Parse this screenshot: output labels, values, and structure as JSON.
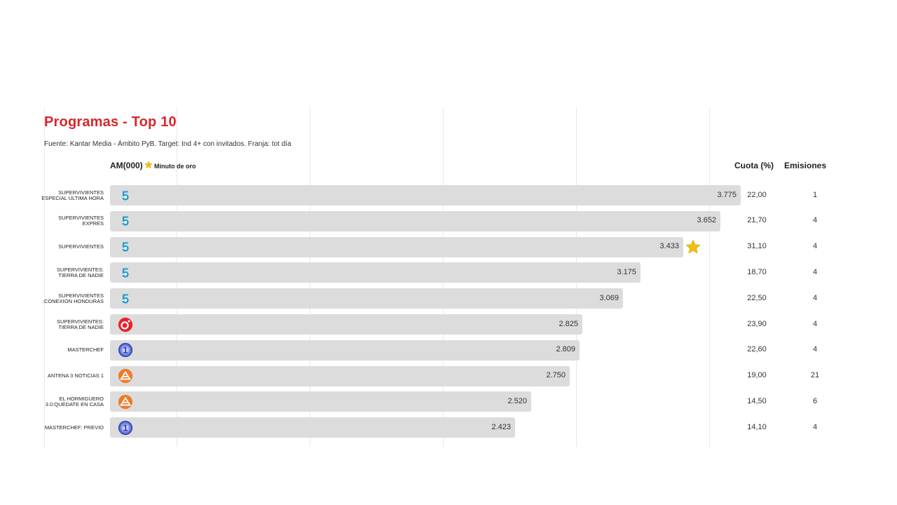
{
  "title": "Programas - Top 10",
  "subtitle": "Fuente: Kantar Media - Ámbito PyB. Target: Ind 4+ con invitados. Franja: tot día",
  "headers": {
    "am": "AM(000)",
    "legend": "Minuto de oro",
    "cuota": "Cuota (%)",
    "emisiones": "Emisiones"
  },
  "colors": {
    "title": "#d9262c",
    "bar": "#dcdcdc",
    "star": "#f2c10f",
    "telecinco": "#1a9ad6",
    "cuatro": "#e8212b",
    "la1": "#2438a8",
    "antena3": "#f07a2a"
  },
  "chart_data": {
    "type": "bar",
    "orientation": "horizontal",
    "title": "Programas - Top 10",
    "xlabel": "AM(000)",
    "xlim": [
      0,
      4000
    ],
    "grid": true,
    "categories": [
      "SUPERVIVIENTES ESPECIAL ULTIMA HORA",
      "SUPERVIVIENTES EXPRES",
      "SUPERVIVIENTES",
      "SUPERVIVIENTES: TIERRA DE NADIE",
      "SUPERVIVIENTES :CONEXION HONDURAS",
      "SUPERVIVIENTES: TIERRA DE NADIE",
      "MASTERCHEF",
      "ANTENA 3 NOTICIAS 1",
      "EL HORMIGUERO 3.0:QUEDATE EN CASA",
      "MASTERCHEF: PREVIO"
    ],
    "values": [
      3775,
      3652,
      3433,
      3175,
      3069,
      2825,
      2809,
      2750,
      2520,
      2423
    ],
    "value_labels": [
      "3.775",
      "3.652",
      "3.433",
      "3.175",
      "3.069",
      "2.825",
      "2.809",
      "2.750",
      "2.520",
      "2.423"
    ],
    "cuota": [
      "22,00",
      "21,70",
      "31,10",
      "18,70",
      "22,50",
      "23,90",
      "22,60",
      "19,00",
      "14,50",
      "14,10"
    ],
    "emisiones": [
      "1",
      "4",
      "4",
      "4",
      "4",
      "4",
      "4",
      "21",
      "6",
      "4"
    ],
    "channel_icons": [
      "telecinco-icon",
      "telecinco-icon",
      "telecinco-icon",
      "telecinco-icon",
      "telecinco-icon",
      "cuatro-icon",
      "la1-icon",
      "antena3-icon",
      "antena3-icon",
      "la1-icon"
    ],
    "minuto_de_oro": [
      false,
      false,
      true,
      false,
      false,
      false,
      false,
      false,
      false,
      false
    ]
  }
}
